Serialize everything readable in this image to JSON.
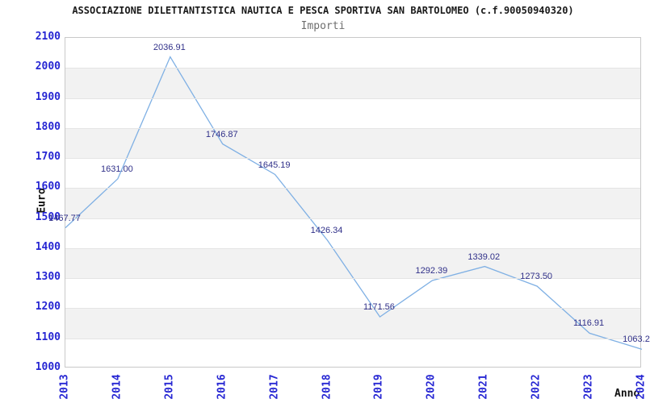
{
  "chart_data": {
    "type": "line",
    "title": "ASSOCIAZIONE DILETTANTISTICA NAUTICA E PESCA SPORTIVA SAN BARTOLOMEO (c.f.90050940320)",
    "subtitle": "Importi",
    "xlabel": "Anno",
    "ylabel": "Euro",
    "x": [
      "2013",
      "2014",
      "2015",
      "2016",
      "2017",
      "2018",
      "2019",
      "2020",
      "2021",
      "2022",
      "2023",
      "2024"
    ],
    "series": [
      {
        "name": "Importi",
        "values": [
          1467.77,
          1631.0,
          2036.91,
          1746.87,
          1645.19,
          1426.34,
          1171.56,
          1292.39,
          1339.02,
          1273.5,
          1116.91,
          1063.2
        ]
      }
    ],
    "point_labels": [
      "1467.77",
      "1631.00",
      "2036.91",
      "1746.87",
      "1645.19",
      "1426.34",
      "1171.56",
      "1292.39",
      "1339.02",
      "1273.50",
      "1116.91",
      "1063.2"
    ],
    "ylim": [
      1000,
      2100
    ],
    "ytick_step": 100,
    "yticks": [
      "1000",
      "1100",
      "1200",
      "1300",
      "1400",
      "1500",
      "1600",
      "1700",
      "1800",
      "1900",
      "2000",
      "2100"
    ],
    "grid": "horizontal-with-alternating-bands",
    "legend": "none",
    "colors": {
      "line": "#7fb0e4",
      "data_label": "#303089",
      "tick_label": "#2727d3",
      "band": "#f2f2f2",
      "gridline": "#e4e4e4",
      "border": "#c9c9c9",
      "title": "#1a1a1a",
      "subtitle": "#6e6e6e",
      "axis_label": "#111111"
    }
  }
}
